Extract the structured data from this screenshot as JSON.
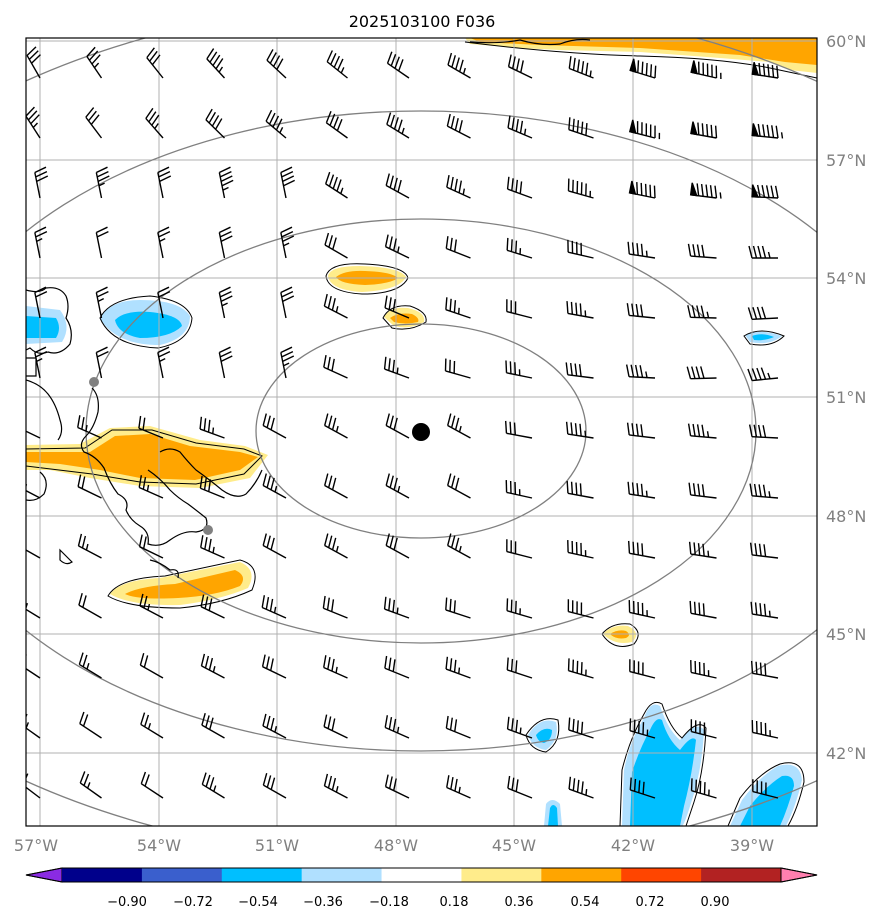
{
  "title": "2025103100 F036",
  "map": {
    "lon_range": [
      -57.3,
      -37.5
    ],
    "lat_range": [
      39.8,
      60.0
    ],
    "lon_ticks": [
      "57°W",
      "54°W",
      "51°W",
      "48°W",
      "45°W",
      "42°W",
      "39°W"
    ],
    "lat_ticks": [
      "60°N",
      "57°N",
      "54°N",
      "51°N",
      "48°N",
      "45°N",
      "42°N"
    ],
    "grid": true,
    "center_marker": {
      "lon": -47.4,
      "lat": 50.1
    },
    "range_rings": 4,
    "colors": {
      "ring": "#808080",
      "grid": "#b0b0b0",
      "frame": "#000000"
    }
  },
  "colorbar": {
    "labels": [
      "−0.90",
      "−0.72",
      "−0.54",
      "−0.36",
      "−0.18",
      "0.18",
      "0.36",
      "0.54",
      "0.72",
      "0.90"
    ],
    "colors": [
      "#8a2be2",
      "#00008b",
      "#3a5fcd",
      "#00bfff",
      "#b0e0ff",
      "#ffffff",
      "#ffec8b",
      "#ffa500",
      "#ff4500",
      "#b22222",
      "#ff7faf"
    ]
  },
  "fill_colors": {
    "light_yellow": "#ffec8b",
    "orange": "#ffa500",
    "light_blue": "#b0e0ff",
    "blue": "#00bfff"
  }
}
